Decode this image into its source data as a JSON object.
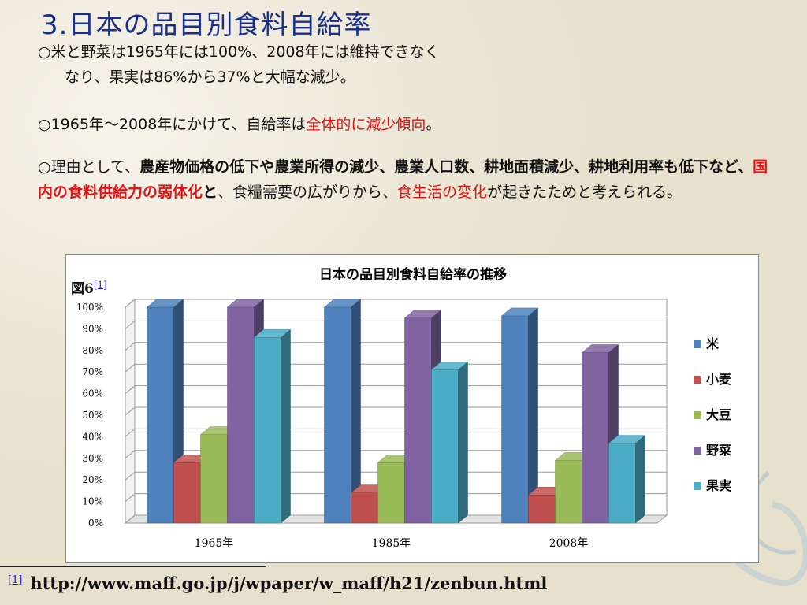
{
  "slide": {
    "title": "3.日本の品目別食料自給率",
    "paragraph1_line1": "○米と野菜は1965年には100%、2008年には維持できなく",
    "paragraph1_line2": "なり、果実は86%から37%と大幅な減少。",
    "paragraph2_a": "○1965年〜2008年にかけて、自給率は",
    "paragraph2_red": "全体的に減少傾向",
    "paragraph2_end": "。",
    "paragraph3_a": "○理由として、",
    "paragraph3_bold1": "農産物価格の低下や農業所得の減少、農業人口数、耕地面積減少、耕地利用率も低下など、",
    "paragraph3_red1": "国内の食料供給力の弱体化",
    "paragraph3_bold2": "と",
    "paragraph3_b": "、食糧需要の広がりから、",
    "paragraph3_red2": "食生活の変化",
    "paragraph3_c": "が起きたためと考えられる。",
    "figure_label": "図6",
    "figure_ref": "[1]",
    "footnote_ref": "[1]",
    "footnote_url": "http://www.maff.go.jp/j/wpaper/w_maff/h21/zenbun.html"
  },
  "chart_data": {
    "type": "bar",
    "title": "日本の品目別食料自給率の推移",
    "categories": [
      "1965年",
      "1985年",
      "2008年"
    ],
    "series": [
      {
        "name": "米",
        "values": [
          100,
          100,
          96
        ],
        "color": "#4f81bd"
      },
      {
        "name": "小麦",
        "values": [
          28,
          14,
          13
        ],
        "color": "#c0504d"
      },
      {
        "name": "大豆",
        "values": [
          41,
          28,
          29
        ],
        "color": "#9bbb59"
      },
      {
        "name": "野菜",
        "values": [
          100,
          95,
          79
        ],
        "color": "#8064a2"
      },
      {
        "name": "果実",
        "values": [
          86,
          71,
          37
        ],
        "color": "#4bacc6"
      }
    ],
    "ylim": [
      0,
      100
    ],
    "yticks": [
      "0%",
      "10%",
      "20%",
      "30%",
      "40%",
      "50%",
      "60%",
      "70%",
      "80%",
      "90%",
      "100%"
    ],
    "grid": true,
    "legend": "right",
    "three_d": true
  }
}
